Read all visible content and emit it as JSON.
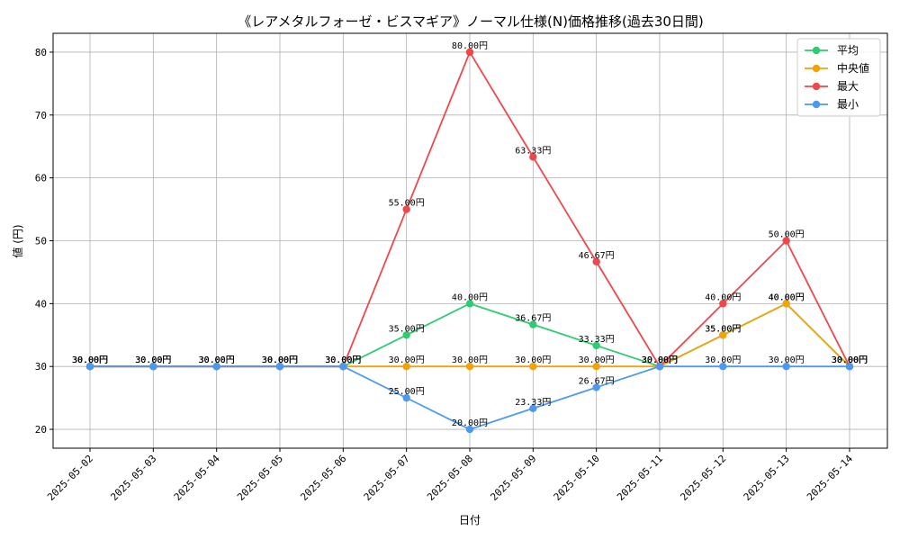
{
  "chart_data": {
    "type": "line",
    "title": "《レアメタルフォーゼ・ビスマギア》ノーマル仕様(N)価格推移(過去30日間)",
    "xlabel": "日付",
    "ylabel": "値 (円)",
    "categories": [
      "2025-05-02",
      "2025-05-03",
      "2025-05-04",
      "2025-05-05",
      "2025-05-06",
      "2025-05-07",
      "2025-05-08",
      "2025-05-09",
      "2025-05-10",
      "2025-05-11",
      "2025-05-12",
      "2025-05-13",
      "2025-05-14"
    ],
    "ylim": [
      17,
      83
    ],
    "yticks": [
      20,
      30,
      40,
      50,
      60,
      70,
      80
    ],
    "grid": true,
    "legend_position": "top-right",
    "label_suffix": "円",
    "series": [
      {
        "name": "平均",
        "color": "#2ecc71",
        "values": [
          30,
          30,
          30,
          30,
          30,
          35,
          40,
          36.67,
          33.33,
          30,
          35,
          40,
          30
        ]
      },
      {
        "name": "中央値",
        "color": "#f0a30a",
        "values": [
          30,
          30,
          30,
          30,
          30,
          30,
          30,
          30,
          30,
          30,
          35,
          40,
          30
        ]
      },
      {
        "name": "最大",
        "color": "#f0474a",
        "values": [
          30,
          30,
          30,
          30,
          30,
          55,
          80,
          63.33,
          46.67,
          30,
          40,
          50,
          30
        ]
      },
      {
        "name": "最小",
        "color": "#4c9af0",
        "values": [
          30,
          30,
          30,
          30,
          30,
          25,
          20,
          23.33,
          26.67,
          30,
          30,
          30,
          30
        ]
      }
    ]
  }
}
